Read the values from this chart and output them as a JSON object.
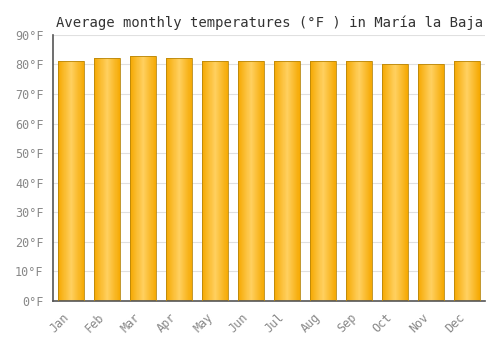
{
  "title": "Average monthly temperatures (°F ) in María la Baja",
  "months": [
    "Jan",
    "Feb",
    "Mar",
    "Apr",
    "May",
    "Jun",
    "Jul",
    "Aug",
    "Sep",
    "Oct",
    "Nov",
    "Dec"
  ],
  "values": [
    81,
    82,
    83,
    82,
    81,
    81,
    81,
    81,
    81,
    80,
    80,
    81
  ],
  "bar_color_center": "#FFD060",
  "bar_color_edge": "#F5A800",
  "bar_edgecolor": "#B8860B",
  "background_color": "#FFFFFF",
  "grid_color": "#E0E0E0",
  "ylim": [
    0,
    90
  ],
  "yticks": [
    0,
    10,
    20,
    30,
    40,
    50,
    60,
    70,
    80,
    90
  ],
  "title_fontsize": 10,
  "tick_fontsize": 8.5
}
